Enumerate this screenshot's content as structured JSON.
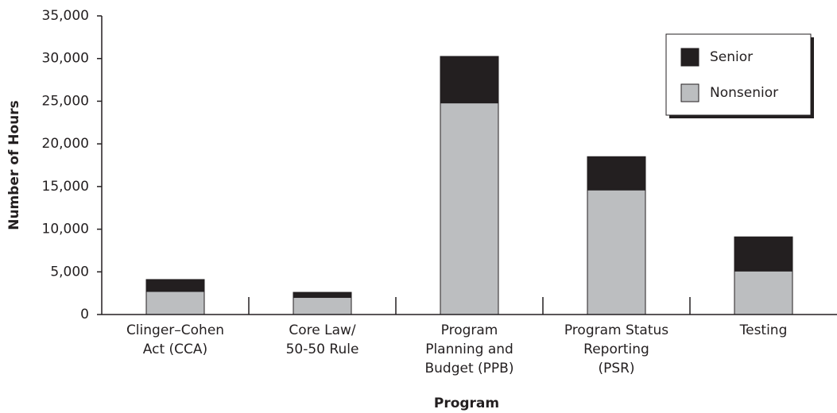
{
  "chart_data": {
    "type": "stacked_bar",
    "categories": [
      [
        "Clinger–Cohen",
        "Act (CCA)"
      ],
      [
        "Core Law/",
        "50-50 Rule"
      ],
      [
        "Program",
        "Planning and",
        "Budget (PPB)"
      ],
      [
        "Program Status",
        "Reporting",
        "(PSR)"
      ],
      [
        "Testing"
      ]
    ],
    "series": [
      {
        "name": "Nonsenior",
        "color": "#bcbec0",
        "values": [
          2700,
          2000,
          24800,
          14600,
          5100
        ]
      },
      {
        "name": "Senior",
        "color": "#231f20",
        "values": [
          1400,
          600,
          5450,
          3900,
          4000
        ]
      }
    ],
    "ylabel": "Number of Hours",
    "xlabel": "Program",
    "ylim": [
      0,
      35000
    ],
    "yticks": [
      0,
      {
        "value": 5000,
        "label": "5,000"
      },
      {
        "value": 10000,
        "label": "10,000"
      },
      {
        "value": 15000,
        "label": "15,000"
      },
      {
        "value": 20000,
        "label": "20,000"
      },
      {
        "value": 25000,
        "label": "25,000"
      },
      {
        "value": 30000,
        "label": "30,000"
      },
      {
        "value": 35000,
        "label": "35,000"
      }
    ],
    "legend": "upper right"
  }
}
